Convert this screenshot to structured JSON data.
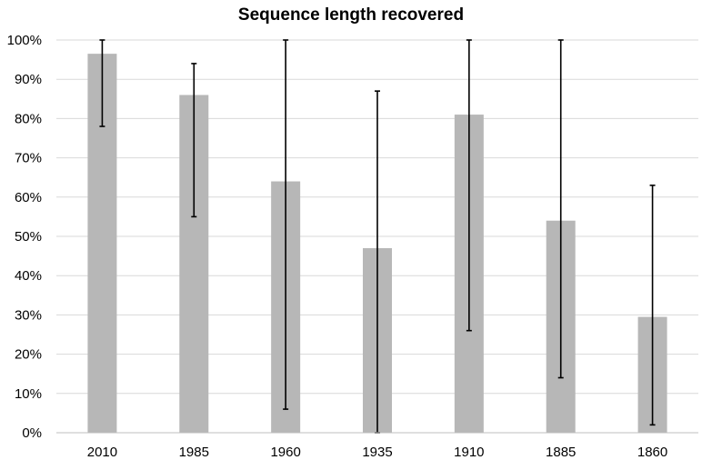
{
  "chart_data": {
    "type": "bar",
    "title": "Sequence length recovered",
    "xlabel": "",
    "ylabel": "",
    "categories": [
      "2010",
      "1985",
      "1960",
      "1935",
      "1910",
      "1885",
      "1860"
    ],
    "values": [
      0.965,
      0.86,
      0.64,
      0.47,
      0.81,
      0.54,
      0.295
    ],
    "error_low": [
      0.78,
      0.55,
      0.06,
      0.0,
      0.26,
      0.14,
      0.02
    ],
    "error_high": [
      1.0,
      0.94,
      1.0,
      0.87,
      1.0,
      1.0,
      0.63
    ],
    "ylim": [
      0,
      1
    ],
    "yticks": [
      0,
      0.1,
      0.2,
      0.3,
      0.4,
      0.5,
      0.6,
      0.7,
      0.8,
      0.9,
      1.0
    ],
    "ytick_labels": [
      "0%",
      "10%",
      "20%",
      "30%",
      "40%",
      "50%",
      "60%",
      "70%",
      "80%",
      "90%",
      "100%"
    ],
    "grid": true,
    "legend": "none",
    "colors": {
      "bar": "#b7b7b7",
      "error_bar": "#000000",
      "grid": "#d9d9d9",
      "axis": "#bfbfbf",
      "text": "#000000"
    }
  }
}
